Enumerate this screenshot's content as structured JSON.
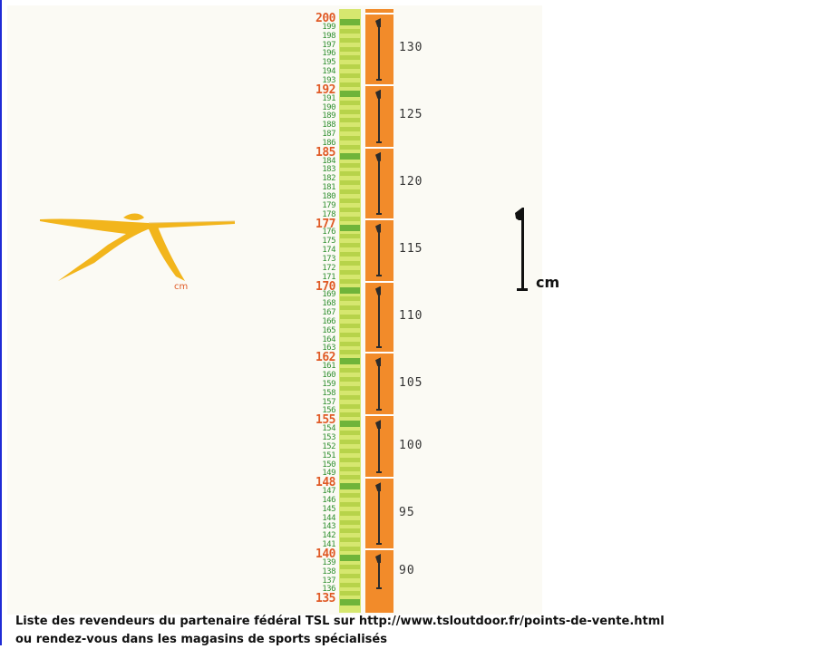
{
  "figure": {
    "runner_unit": "cm",
    "legend_unit": "cm",
    "heights": [
      200,
      199,
      198,
      197,
      196,
      195,
      194,
      193,
      192,
      191,
      190,
      189,
      188,
      187,
      186,
      185,
      184,
      183,
      182,
      181,
      180,
      179,
      178,
      177,
      176,
      175,
      174,
      173,
      172,
      171,
      170,
      169,
      168,
      167,
      166,
      165,
      164,
      163,
      162,
      161,
      160,
      159,
      158,
      157,
      156,
      155,
      154,
      153,
      152,
      151,
      150,
      149,
      148,
      147,
      146,
      145,
      144,
      143,
      142,
      141,
      140,
      139,
      138,
      137,
      136,
      135
    ],
    "major_heights": [
      200,
      192,
      185,
      177,
      170,
      162,
      155,
      148,
      140,
      135
    ],
    "pole_lengths": [
      "130",
      "125",
      "120",
      "115",
      "110",
      "105",
      "100",
      "95",
      "90"
    ],
    "colors": {
      "panel_bg": "#fbfaf4",
      "green_column": "#d6e76f",
      "green_segment": "#b7d34a",
      "orange_column": "#f28b2a",
      "major_label": "#e05a26",
      "minor_label": "#2f8f2f",
      "runner": "#f2b51c"
    },
    "icons": {
      "runner": "runner-icon",
      "pole": "ski-pole-icon"
    }
  },
  "footer": {
    "line1": "Liste des revendeurs du partenaire fédéral TSL sur http://www.tsloutdoor.fr/points-de-vente.html",
    "line2": "ou rendez-vous dans les magasins de sports spécialisés"
  }
}
